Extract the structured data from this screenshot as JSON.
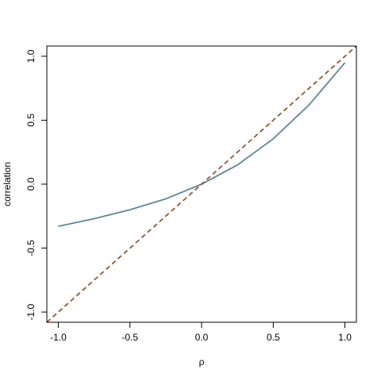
{
  "chart_data": {
    "type": "line",
    "x_label": "ρ",
    "y_label": "correlation",
    "xlim": [
      -1.08,
      1.08
    ],
    "ylim": [
      -1.08,
      1.08
    ],
    "xticks": [
      {
        "value": -1,
        "label": "-1.0"
      },
      -0.5,
      {
        "value": 0,
        "label": "0.0"
      },
      0.5,
      {
        "value": 1,
        "label": "1.0"
      }
    ],
    "yticks": [
      {
        "value": -1,
        "label": "-1.0"
      },
      -0.5,
      {
        "value": 0,
        "label": "0.0"
      },
      0.5,
      {
        "value": 1,
        "label": "1.0"
      }
    ],
    "series": [
      {
        "color": "#5e8795",
        "line_style": "solid",
        "x": [
          -1,
          -0.75,
          -0.5,
          -0.25,
          0,
          0.25,
          0.5,
          0.75,
          1
        ],
        "values": [
          -0.33,
          -0.27,
          -0.2,
          -0.115,
          0,
          0.15,
          0.355,
          0.62,
          0.95
        ]
      },
      {
        "color": "#8b5a3c",
        "line_style": "dashed",
        "x": [
          -1.08,
          1.08
        ],
        "values": [
          -1.08,
          1.08
        ]
      }
    ]
  }
}
